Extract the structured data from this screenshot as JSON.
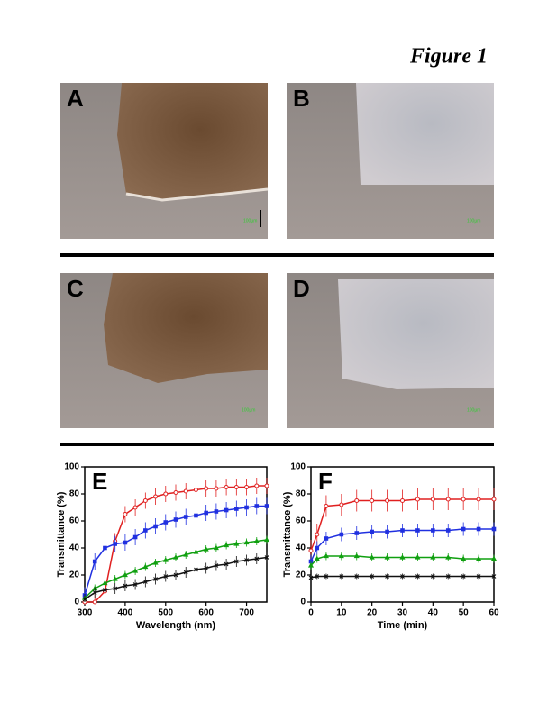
{
  "figure_title": "Figure 1",
  "panels": [
    "A",
    "B",
    "C",
    "D"
  ],
  "scale_label": "100µm",
  "chart_data": [
    {
      "type": "line",
      "panel": "E",
      "xlabel": "Wavelength (nm)",
      "ylabel": "Transmittance (%)",
      "x": [
        300,
        325,
        350,
        375,
        400,
        425,
        450,
        475,
        500,
        525,
        550,
        575,
        600,
        625,
        650,
        675,
        700,
        725,
        750
      ],
      "xlim": [
        300,
        750
      ],
      "xticks": [
        300,
        400,
        500,
        600,
        700
      ],
      "ylim": [
        0,
        100
      ],
      "yticks": [
        0,
        20,
        40,
        60,
        80,
        100
      ],
      "series": [
        {
          "color": "#e02020",
          "marker": "circle",
          "error": 6,
          "values": [
            0,
            0,
            8,
            45,
            65,
            70,
            75,
            78,
            80,
            81,
            82,
            83,
            84,
            84,
            85,
            85,
            85,
            86,
            86
          ]
        },
        {
          "color": "#2030e0",
          "marker": "square",
          "error": 6,
          "values": [
            5,
            30,
            40,
            43,
            44,
            48,
            53,
            56,
            59,
            61,
            63,
            64,
            66,
            67,
            68,
            69,
            70,
            71,
            71
          ]
        },
        {
          "color": "#10a010",
          "marker": "triangle",
          "error": 3,
          "values": [
            3,
            10,
            14,
            17,
            20,
            23,
            26,
            29,
            31,
            33,
            35,
            37,
            39,
            40,
            42,
            43,
            44,
            45,
            46
          ]
        },
        {
          "color": "#111111",
          "marker": "cross",
          "error": 4,
          "values": [
            2,
            7,
            9,
            10,
            12,
            13,
            15,
            17,
            19,
            20,
            22,
            24,
            25,
            27,
            28,
            30,
            31,
            32,
            33
          ]
        }
      ]
    },
    {
      "type": "line",
      "panel": "F",
      "xlabel": "Time (min)",
      "ylabel": "Transmittance (%)",
      "x": [
        0,
        2,
        5,
        10,
        15,
        20,
        25,
        30,
        35,
        40,
        45,
        50,
        55,
        60
      ],
      "xlim": [
        0,
        60
      ],
      "xticks": [
        0,
        10,
        20,
        30,
        40,
        50,
        60
      ],
      "ylim": [
        0,
        100
      ],
      "yticks": [
        0,
        20,
        40,
        60,
        80,
        100
      ],
      "series": [
        {
          "color": "#e02020",
          "marker": "circle",
          "error": 8,
          "values": [
            38,
            50,
            71,
            72,
            75,
            75,
            75,
            75,
            76,
            76,
            76,
            76,
            76,
            76
          ]
        },
        {
          "color": "#2030e0",
          "marker": "square",
          "error": 5,
          "values": [
            30,
            40,
            47,
            50,
            51,
            52,
            52,
            53,
            53,
            53,
            53,
            54,
            54,
            54
          ]
        },
        {
          "color": "#10a010",
          "marker": "triangle",
          "error": 3,
          "values": [
            27,
            32,
            34,
            34,
            34,
            33,
            33,
            33,
            33,
            33,
            33,
            32,
            32,
            32
          ]
        },
        {
          "color": "#111111",
          "marker": "cross",
          "error": 2,
          "values": [
            18,
            19,
            19,
            19,
            19,
            19,
            19,
            19,
            19,
            19,
            19,
            19,
            19,
            19
          ]
        }
      ]
    }
  ]
}
